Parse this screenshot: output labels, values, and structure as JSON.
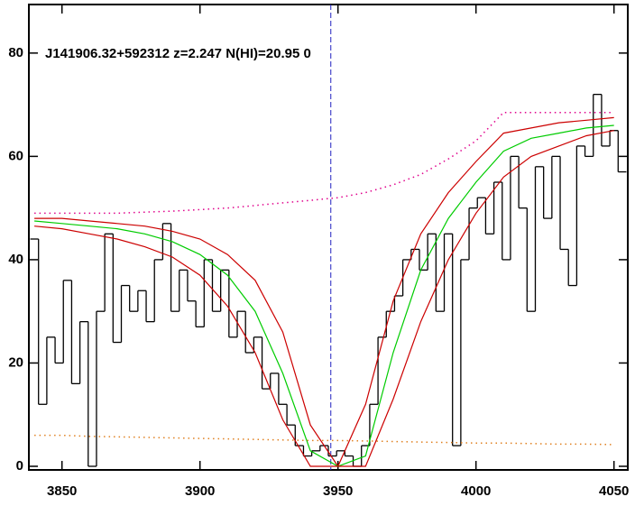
{
  "chart_data": {
    "type": "line",
    "title": "J141906.32+592312 z=2.247 N(HI)=20.95 0",
    "xlim": [
      3838,
      4055
    ],
    "ylim": [
      -0.7,
      89.4
    ],
    "xticks": [
      3850,
      3900,
      3950,
      4000,
      4050
    ],
    "yticks": [
      0,
      20,
      40,
      60,
      80
    ],
    "vline": 3947.4,
    "series": [
      {
        "style": "step",
        "color": "#000000",
        "x": [
          3840,
          3843,
          3846,
          3849,
          3852,
          3855,
          3858,
          3861,
          3864,
          3867,
          3870,
          3873,
          3876,
          3879,
          3882,
          3885,
          3888,
          3891,
          3894,
          3897,
          3900,
          3903,
          3906,
          3909,
          3912,
          3915,
          3918,
          3921,
          3924,
          3927,
          3930,
          3933,
          3936,
          3939,
          3942,
          3945,
          3948,
          3951,
          3954,
          3957,
          3960,
          3963,
          3966,
          3969,
          3972,
          3975,
          3978,
          3981,
          3984,
          3987,
          3990,
          3993,
          3996,
          3999,
          4002,
          4005,
          4008,
          4011,
          4014,
          4017,
          4020,
          4023,
          4026,
          4029,
          4032,
          4035,
          4038,
          4041,
          4044,
          4047,
          4050,
          4053
        ],
        "values": [
          44,
          12,
          25,
          20,
          36,
          16,
          28,
          0,
          30,
          45,
          24,
          35,
          30,
          34,
          28,
          40,
          47,
          30,
          38,
          32,
          27,
          40,
          30,
          38,
          25,
          30,
          22,
          25,
          15,
          18,
          12,
          8,
          4,
          2,
          3,
          4,
          2,
          3,
          2,
          0,
          4,
          12,
          25,
          30,
          33,
          40,
          42,
          38,
          45,
          30,
          45,
          4,
          40,
          50,
          52,
          45,
          55,
          40,
          60,
          50,
          30,
          58,
          48,
          60,
          42,
          35,
          62,
          60,
          72,
          62,
          65,
          57
        ]
      },
      {
        "style": "dotted",
        "color": "#e0008c",
        "x": [
          3840,
          3850,
          3860,
          3870,
          3880,
          3890,
          3900,
          3910,
          3920,
          3930,
          3940,
          3950,
          3960,
          3970,
          3980,
          3990,
          4000,
          4010,
          4020,
          4030,
          4040,
          4050
        ],
        "values": [
          49,
          49,
          49,
          49,
          49.2,
          49.4,
          49.7,
          50,
          50.5,
          51,
          51.5,
          52,
          53,
          54.5,
          56.5,
          59.5,
          63,
          68.5,
          68.5,
          68.5,
          68.5,
          68.5
        ]
      },
      {
        "style": "line",
        "color": "#cc0000",
        "x": [
          3840,
          3850,
          3860,
          3870,
          3880,
          3890,
          3900,
          3910,
          3920,
          3930,
          3940,
          3950,
          3960,
          3970,
          3980,
          3990,
          4000,
          4010,
          4020,
          4030,
          4040,
          4050
        ],
        "values": [
          48,
          48,
          47.5,
          47,
          46.5,
          45.5,
          44,
          41,
          36,
          26,
          8,
          0,
          12,
          32,
          45,
          53,
          59,
          64.5,
          65.5,
          66.5,
          67,
          67.5
        ]
      },
      {
        "style": "line",
        "color": "#00cc00",
        "x": [
          3840,
          3850,
          3860,
          3870,
          3880,
          3890,
          3900,
          3910,
          3920,
          3930,
          3940,
          3950,
          3960,
          3970,
          3980,
          3990,
          4000,
          4010,
          4020,
          4030,
          4040,
          4050
        ],
        "values": [
          47.5,
          47,
          46.5,
          46,
          45,
          43.5,
          41,
          37,
          30,
          18,
          3,
          0,
          2,
          22,
          38,
          48,
          55,
          61,
          63.5,
          64.5,
          65.5,
          66
        ]
      },
      {
        "style": "line",
        "color": "#cc0000",
        "x": [
          3840,
          3850,
          3860,
          3870,
          3880,
          3890,
          3900,
          3910,
          3920,
          3930,
          3940,
          3950,
          3960,
          3970,
          3980,
          3990,
          4000,
          4010,
          4020,
          4030,
          4040,
          4050
        ],
        "values": [
          46.5,
          46,
          45,
          44,
          42.5,
          40.5,
          37,
          31,
          22,
          9,
          0,
          0,
          0,
          13,
          28,
          40,
          49,
          56,
          60,
          62,
          64,
          65
        ]
      },
      {
        "style": "dotted",
        "color": "#e08020",
        "x": [
          3840,
          3850,
          3860,
          3870,
          3880,
          3890,
          3900,
          3910,
          3920,
          3930,
          3940,
          3950,
          3960,
          3970,
          3980,
          3990,
          4000,
          4010,
          4020,
          4030,
          4040,
          4050
        ],
        "values": [
          6,
          6,
          5.8,
          5.7,
          5.6,
          5.5,
          5.4,
          5.3,
          5.2,
          5.1,
          5,
          5,
          4.9,
          4.8,
          4.7,
          4.6,
          4.5,
          4.5,
          4.4,
          4.3,
          4.3,
          4.2
        ]
      }
    ]
  }
}
